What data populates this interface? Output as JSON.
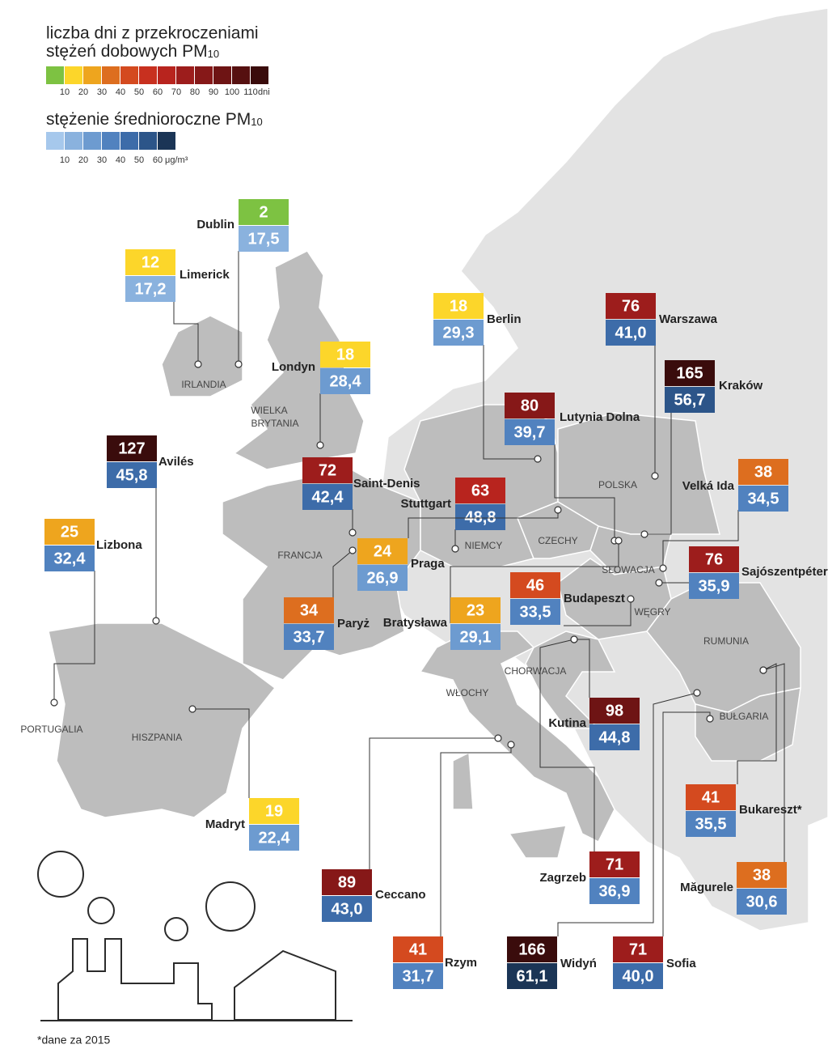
{
  "legend_days": {
    "title": [
      "liczba dni z przekroczeniami",
      "stężeń dobowych PM"
    ],
    "subscript": "10",
    "colors": [
      "#7dc242",
      "#fcd62a",
      "#eea51e",
      "#dd6e1f",
      "#d44a1f",
      "#c8301f",
      "#b8241e",
      "#9d1d1c",
      "#861818",
      "#6e1414",
      "#561010",
      "#3a0c0c"
    ],
    "ticks": [
      10,
      20,
      30,
      40,
      50,
      60,
      70,
      80,
      90,
      100,
      110
    ],
    "unit": "dni"
  },
  "legend_pm": {
    "title": "stężenie średnioroczne PM",
    "subscript": "10",
    "colors": [
      "#a6c8ec",
      "#8ab2de",
      "#6d9bd0",
      "#5182bf",
      "#3d6ca9",
      "#2c5589",
      "#1b3556"
    ],
    "ticks": [
      10,
      20,
      30,
      40,
      50,
      60
    ],
    "unit": "μg/m³"
  },
  "countries": [
    "IRLANDIA",
    "WIELKA",
    "BRYTANIA",
    "FRANCJA",
    "PORTUGALIA",
    "HISZPANIA",
    "NIEMCY",
    "CZECHY",
    "POLSKA",
    "SŁOWACJA",
    "WĘGRY",
    "RUMUNIA",
    "BUŁGARIA",
    "CHORWACJA",
    "WŁOCHY"
  ],
  "cities": [
    {
      "name": "Dublin",
      "days": 2,
      "pm": "17,5"
    },
    {
      "name": "Limerick",
      "days": 12,
      "pm": "17,2"
    },
    {
      "name": "Londyn",
      "days": 18,
      "pm": "28,4"
    },
    {
      "name": "Berlin",
      "days": 18,
      "pm": "29,3"
    },
    {
      "name": "Warszawa",
      "days": 76,
      "pm": "41,0"
    },
    {
      "name": "Kraków",
      "days": 165,
      "pm": "56,7"
    },
    {
      "name": "Lutynia Dolna",
      "days": 80,
      "pm": "39,7"
    },
    {
      "name": "Avilés",
      "days": 127,
      "pm": "45,8"
    },
    {
      "name": "Saint-Denis",
      "days": 72,
      "pm": "42,4"
    },
    {
      "name": "Stuttgart",
      "days": 63,
      "pm": "48,8"
    },
    {
      "name": "Velká Ida",
      "days": 38,
      "pm": "34,5"
    },
    {
      "name": "Lizbona",
      "days": 25,
      "pm": "32,4"
    },
    {
      "name": "Praga",
      "days": 24,
      "pm": "26,9"
    },
    {
      "name": "Sajószentpéter",
      "days": 76,
      "pm": "35,9"
    },
    {
      "name": "Budapeszt",
      "days": 46,
      "pm": "33,5"
    },
    {
      "name": "Paryż",
      "days": 34,
      "pm": "33,7"
    },
    {
      "name": "Bratysława",
      "days": 23,
      "pm": "29,1"
    },
    {
      "name": "Kutina",
      "days": 98,
      "pm": "44,8"
    },
    {
      "name": "Madryt",
      "days": 19,
      "pm": "22,4"
    },
    {
      "name": "Ceccano",
      "days": 89,
      "pm": "43,0"
    },
    {
      "name": "Zagrzeb",
      "days": 71,
      "pm": "36,9"
    },
    {
      "name": "Bukareszt*",
      "days": 41,
      "pm": "35,5"
    },
    {
      "name": "Măgurele",
      "days": 38,
      "pm": "30,6"
    },
    {
      "name": "Rzym",
      "days": 41,
      "pm": "31,7"
    },
    {
      "name": "Widyń",
      "days": 166,
      "pm": "61,1"
    },
    {
      "name": "Sofia",
      "days": 71,
      "pm": "40,0"
    }
  ],
  "footnote": "*dane za 2015"
}
